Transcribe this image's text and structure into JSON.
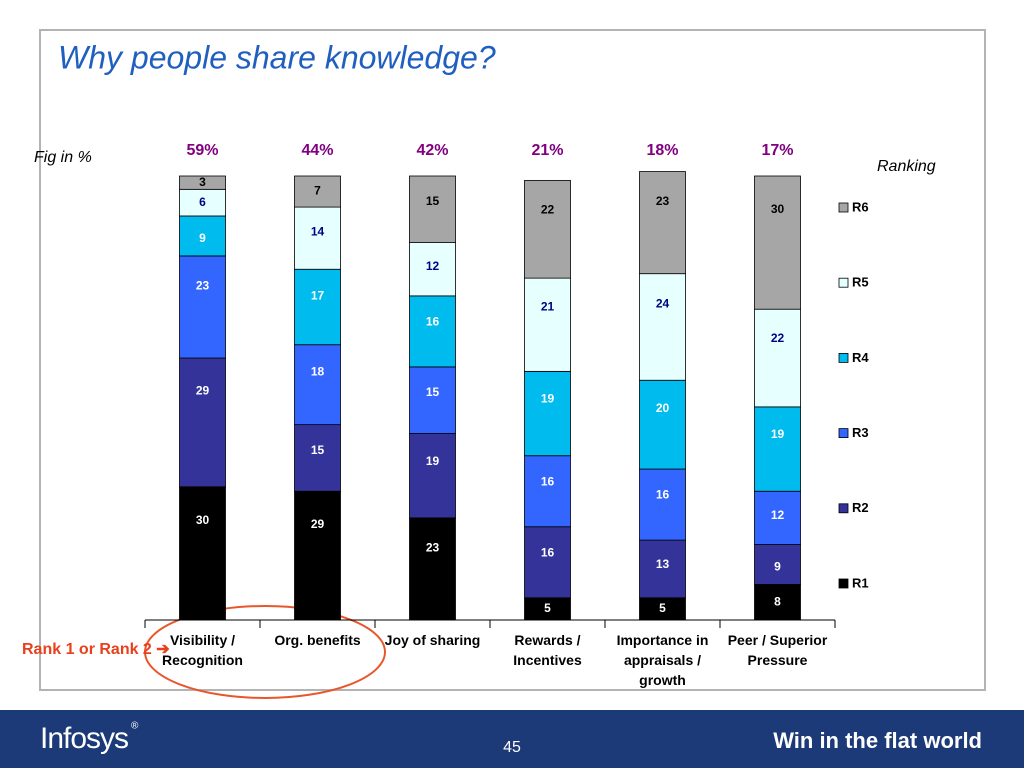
{
  "chart_data": {
    "type": "stacked_bar",
    "title": "Why people share knowledge?",
    "unit_note": "Fig in %",
    "legend_title": "Ranking",
    "callout": "Rank 1 or Rank 2 ➔",
    "categories": [
      "Visibility / Recognition",
      "Org. benefits",
      "Joy of sharing",
      "Rewards / Incentives",
      "Importance in appraisals / growth",
      "Peer / Superior Pressure"
    ],
    "ylim": [
      0,
      100
    ],
    "series": [
      {
        "name": "R1",
        "color": "#000000",
        "label_color": "#ffffff",
        "values": [
          30,
          29,
          23,
          5,
          5,
          8
        ]
      },
      {
        "name": "R2",
        "color": "#333399",
        "label_color": "#ffffff",
        "values": [
          29,
          15,
          19,
          16,
          13,
          9
        ]
      },
      {
        "name": "R3",
        "color": "#3366ff",
        "label_color": "#ffffff",
        "values": [
          23,
          18,
          15,
          16,
          16,
          12
        ]
      },
      {
        "name": "R4",
        "color": "#00bbee",
        "label_color": "#ffffff",
        "values": [
          9,
          17,
          16,
          19,
          20,
          19
        ]
      },
      {
        "name": "R5",
        "color": "#e6ffff",
        "label_color": "#000080",
        "values": [
          6,
          14,
          12,
          21,
          24,
          22
        ]
      },
      {
        "name": "R6",
        "color": "#a6a6a6",
        "label_color": "#000000",
        "values": [
          3,
          7,
          15,
          22,
          23,
          30
        ]
      }
    ],
    "top_totals": {
      "color": "#800080",
      "values": [
        59,
        44,
        42,
        21,
        18,
        17
      ],
      "value_labels": [
        "59%",
        "44%",
        "42%",
        "21%",
        "18%",
        "17%"
      ]
    }
  },
  "footer": {
    "logo": "Infosys",
    "logo_mark": "®",
    "page_number": "45",
    "tagline": "Win in the flat world"
  }
}
